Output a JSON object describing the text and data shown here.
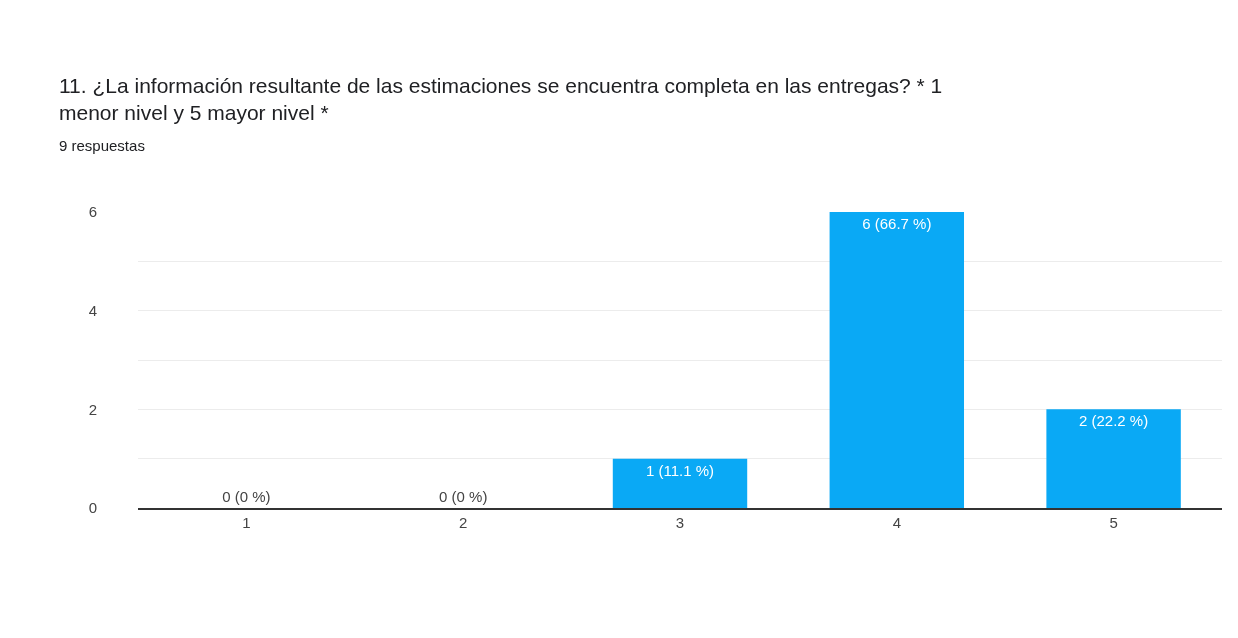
{
  "chart_data": {
    "type": "bar",
    "title": "11. ¿La información resultante de las estimaciones se encuentra completa en las entregas? * 1 menor nivel y 5 mayor nivel *",
    "subtitle": "9 respuestas",
    "categories": [
      "1",
      "2",
      "3",
      "4",
      "5"
    ],
    "values": [
      0,
      0,
      1,
      6,
      2
    ],
    "value_labels": [
      "0 (0 %)",
      "0 (0 %)",
      "1 (11.1 %)",
      "6 (66.7 %)",
      "2 (22.2 %)"
    ],
    "color": "#0aa9f5",
    "ylim": [
      0,
      6
    ],
    "yticks": [
      0,
      {
        "value": 1,
        "label": null
      },
      2,
      {
        "value": 3,
        "label": null
      },
      4,
      {
        "value": 5,
        "label": null
      },
      6
    ],
    "grid": "y"
  }
}
